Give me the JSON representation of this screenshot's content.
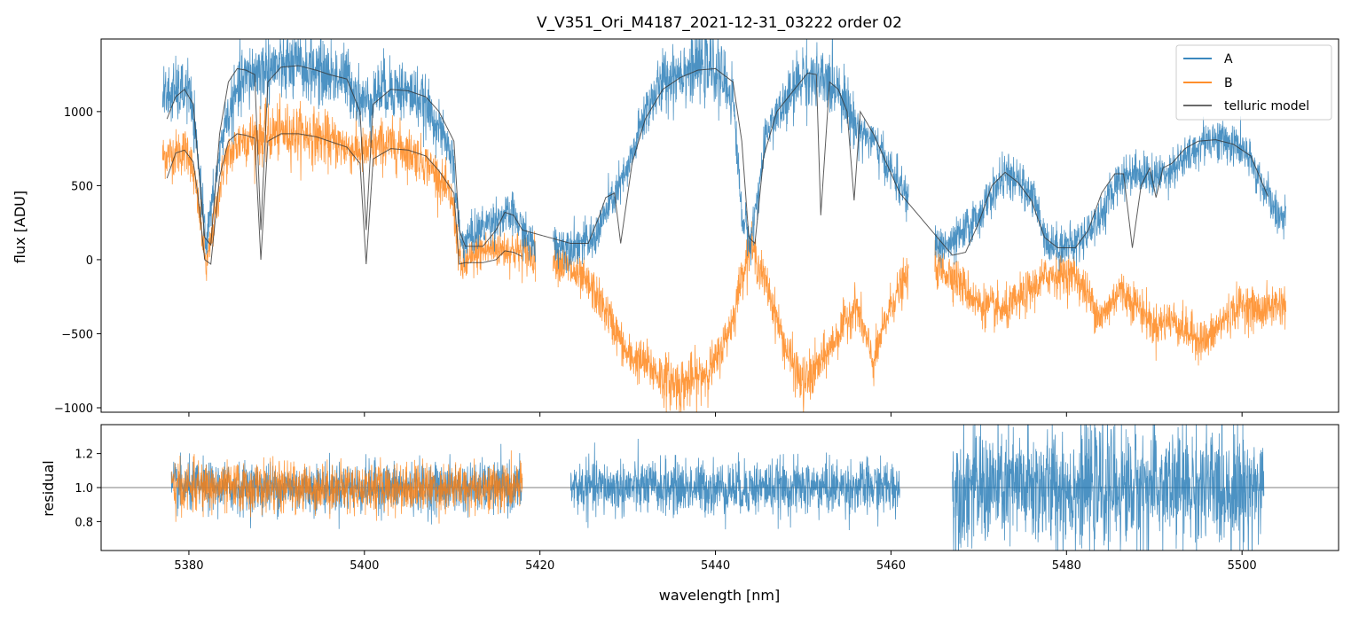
{
  "chart_data": {
    "type": "line",
    "title": "V_V351_Ori_M4187_2021-12-31_03222  order 02",
    "xlabel": "wavelength [nm]",
    "xlim": [
      5370,
      5511
    ],
    "x_ticks": [
      5380,
      5400,
      5420,
      5440,
      5460,
      5480,
      5500
    ],
    "x_tick_labels": [
      "5380",
      "5400",
      "5420",
      "5440",
      "5460",
      "5480",
      "5500"
    ],
    "panels": [
      {
        "id": "flux",
        "ylabel": "flux [ADU]",
        "ylim": [
          -1030,
          1490
        ],
        "y_ticks": [
          -1000,
          -500,
          0,
          500,
          1000
        ],
        "y_tick_labels": [
          "−1000",
          "−500",
          "0",
          "500",
          "1000"
        ],
        "legend": {
          "position": "top-right",
          "entries": [
            {
              "label": "A",
              "color": "#1f77b4"
            },
            {
              "label": "B",
              "color": "#ff7f0e"
            },
            {
              "label": "telluric model",
              "color": "#555555"
            }
          ]
        },
        "segments": [
          {
            "x_range": [
              5377,
              5419.5
            ],
            "series": [
              "A",
              "B"
            ],
            "model_range": [
              5377,
              5418.0
            ]
          },
          {
            "x_range": [
              5421.5,
              5462.0
            ],
            "series": [
              "A",
              "B"
            ],
            "model_range": [
              5423.5,
              5461.0
            ]
          },
          {
            "x_range": [
              5465.0,
              5505.0
            ],
            "series": [
              "A",
              "B"
            ],
            "model_range": [
              5467.0,
              5503.0
            ]
          }
        ],
        "series": [
          {
            "name": "A",
            "color": "#1f77b4",
            "envelope": {
              "x": [
                5377,
                5380,
                5381,
                5382,
                5384,
                5386,
                5388,
                5390,
                5392,
                5394,
                5396,
                5398,
                5400,
                5402,
                5404,
                5406,
                5408,
                5410,
                5411,
                5413,
                5415,
                5417,
                5419,
                5423,
                5426,
                5428,
                5430,
                5432,
                5434,
                5436,
                5438,
                5440,
                5442,
                5443,
                5444,
                5446,
                5448,
                5450,
                5452,
                5454,
                5456,
                5458,
                5460,
                5462,
                5465,
                5467,
                5470,
                5473,
                5476,
                5478,
                5481,
                5484,
                5486,
                5488,
                5490,
                5492,
                5494,
                5496,
                5498,
                5500,
                5502,
                5504
              ],
              "y": [
                1100,
                1150,
                700,
                120,
                900,
                1200,
                1280,
                1300,
                1300,
                1290,
                1250,
                1220,
                1050,
                1160,
                1150,
                1100,
                950,
                700,
                100,
                200,
                280,
                300,
                100,
                100,
                120,
                380,
                600,
                1000,
                1200,
                1280,
                1300,
                1290,
                1100,
                300,
                120,
                900,
                1050,
                1250,
                1200,
                1180,
                900,
                800,
                600,
                400,
                100,
                100,
                300,
                580,
                450,
                100,
                100,
                300,
                550,
                600,
                550,
                620,
                700,
                820,
                800,
                750,
                550,
                300
              ]
            }
          },
          {
            "name": "B",
            "color": "#ff7f0e",
            "envelope": {
              "x": [
                5377,
                5380,
                5381,
                5382,
                5384,
                5386,
                5388,
                5390,
                5392,
                5394,
                5396,
                5398,
                5400,
                5402,
                5404,
                5406,
                5408,
                5410,
                5411,
                5413,
                5415,
                5417,
                5419,
                5422,
                5424,
                5426,
                5428,
                5430,
                5432,
                5434,
                5436,
                5438,
                5440,
                5442,
                5443,
                5444,
                5446,
                5448,
                5450,
                5452,
                5454,
                5456,
                5458,
                5460,
                5462,
                5465,
                5467,
                5470,
                5473,
                5476,
                5478,
                5481,
                5484,
                5486,
                5488,
                5490,
                5492,
                5494,
                5496,
                5498,
                5500,
                5502,
                5504
              ],
              "y": [
                700,
                740,
                400,
                -60,
                650,
                820,
                830,
                860,
                860,
                840,
                800,
                760,
                720,
                780,
                760,
                700,
                600,
                400,
                -60,
                50,
                80,
                60,
                30,
                0,
                -100,
                -200,
                -400,
                -650,
                -700,
                -800,
                -850,
                -800,
                -700,
                -400,
                -100,
                100,
                -200,
                -600,
                -850,
                -700,
                -500,
                -300,
                -700,
                -300,
                -100,
                -50,
                -100,
                -300,
                -350,
                -200,
                -100,
                -100,
                -400,
                -200,
                -300,
                -450,
                -400,
                -500,
                -550,
                -400,
                -300,
                -350,
                -300
              ]
            }
          },
          {
            "name": "telluric model",
            "color": "#555555",
            "lines": [
              {
                "for": "A",
                "x": [
                  5377.5,
                  5378.5,
                  5379.5,
                  5380.5,
                  5381.0,
                  5381.8,
                  5382.5,
                  5383.5,
                  5384.5,
                  5385.5,
                  5386.5,
                  5387.5,
                  5388.2,
                  5389.0,
                  5390.5,
                  5392.5,
                  5394.5,
                  5396.0,
                  5398.0,
                  5399.5,
                  5400.2,
                  5401.0,
                  5403.0,
                  5405.0,
                  5407.0,
                  5408.5,
                  5410.2,
                  5410.8,
                  5411.5,
                  5413.5,
                  5415.0,
                  5416.0,
                  5417.0,
                  5418.0,
                  5423.5,
                  5425.5,
                  5426.8,
                  5427.5,
                  5428.5,
                  5429.2,
                  5430.5,
                  5432.0,
                  5434.0,
                  5436.0,
                  5438.0,
                  5440.0,
                  5442.0,
                  5443.0,
                  5443.8,
                  5444.5,
                  5445.5,
                  5447.0,
                  5449.0,
                  5450.5,
                  5451.5,
                  5452.0,
                  5453.0,
                  5454.0,
                  5455.0,
                  5455.8,
                  5456.5,
                  5458.0,
                  5459.5,
                  5461.0,
                  5467.0,
                  5468.5,
                  5470.0,
                  5471.5,
                  5473.0,
                  5474.5,
                  5476.0,
                  5477.5,
                  5479.0,
                  5481.0,
                  5482.5,
                  5484.0,
                  5485.5,
                  5486.5,
                  5487.5,
                  5488.5,
                  5489.5,
                  5490.2,
                  5491.0,
                  5492.0,
                  5493.5,
                  5495.0,
                  5497.0,
                  5499.0,
                  5501.0,
                  5503.0
                ],
                "y": [
                  950,
                  1100,
                  1150,
                  1050,
                  700,
                  150,
                  100,
                  850,
                  1200,
                  1290,
                  1280,
                  1250,
                  200,
                  1200,
                  1300,
                  1310,
                  1280,
                  1250,
                  1220,
                  1000,
                  200,
                  1050,
                  1150,
                  1140,
                  1100,
                  1000,
                  800,
                  200,
                  90,
                  90,
                  200,
                  320,
                  300,
                  200,
                  110,
                  110,
                  300,
                  420,
                  450,
                  110,
                  650,
                  950,
                  1150,
                  1230,
                  1280,
                  1290,
                  1200,
                  800,
                  150,
                  110,
                  700,
                  1000,
                  1150,
                  1260,
                  1250,
                  300,
                  1200,
                  1150,
                  1000,
                  400,
                  1000,
                  850,
                  650,
                  450,
                  30,
                  50,
                  250,
                  500,
                  590,
                  520,
                  400,
                  150,
                  80,
                  80,
                  200,
                  450,
                  580,
                  580,
                  80,
                  500,
                  620,
                  420,
                  620,
                  650,
                  750,
                  800,
                  810,
                  780,
                  700,
                  420
                ]
              },
              {
                "for": "B",
                "x": [
                  5377.5,
                  5378.5,
                  5379.5,
                  5380.5,
                  5381.0,
                  5381.8,
                  5382.5,
                  5383.5,
                  5384.5,
                  5385.5,
                  5386.5,
                  5387.5,
                  5388.2,
                  5389.0,
                  5390.5,
                  5392.5,
                  5394.5,
                  5396.0,
                  5398.0,
                  5399.5,
                  5400.2,
                  5401.0,
                  5403.0,
                  5405.0,
                  5407.0,
                  5408.5,
                  5410.2,
                  5410.8,
                  5411.5,
                  5413.5,
                  5415.0,
                  5416.0,
                  5417.0,
                  5418.0
                ],
                "y": [
                  550,
                  720,
                  740,
                  660,
                  450,
                  0,
                  -30,
                  560,
                  800,
                  850,
                  840,
                  820,
                  0,
                  800,
                  850,
                  850,
                  830,
                  800,
                  760,
                  650,
                  -30,
                  680,
                  750,
                  740,
                  700,
                  600,
                  450,
                  -30,
                  -20,
                  -20,
                  0,
                  60,
                  50,
                  20
                ]
              }
            ]
          }
        ]
      },
      {
        "id": "residual",
        "ylabel": "residual",
        "ylim": [
          0.63,
          1.37
        ],
        "y_ticks": [
          0.8,
          1.0,
          1.2
        ],
        "y_tick_labels": [
          "0.8",
          "1.0",
          "1.2"
        ],
        "reference_line": 1.0,
        "series": [
          {
            "name": "A",
            "color": "#1f77b4",
            "segments": [
              {
                "x_range": [
                  5378.0,
                  5418.0
                ],
                "noise": 0.09
              },
              {
                "x_range": [
                  5423.5,
                  5461.0
                ],
                "noise": 0.1
              },
              {
                "x_range": [
                  5467.0,
                  5502.5
                ],
                "noise": 0.22
              }
            ]
          },
          {
            "name": "B",
            "color": "#ff7f0e",
            "segments": [
              {
                "x_range": [
                  5378.0,
                  5418.0
                ],
                "noise": 0.09
              }
            ]
          }
        ]
      }
    ]
  }
}
